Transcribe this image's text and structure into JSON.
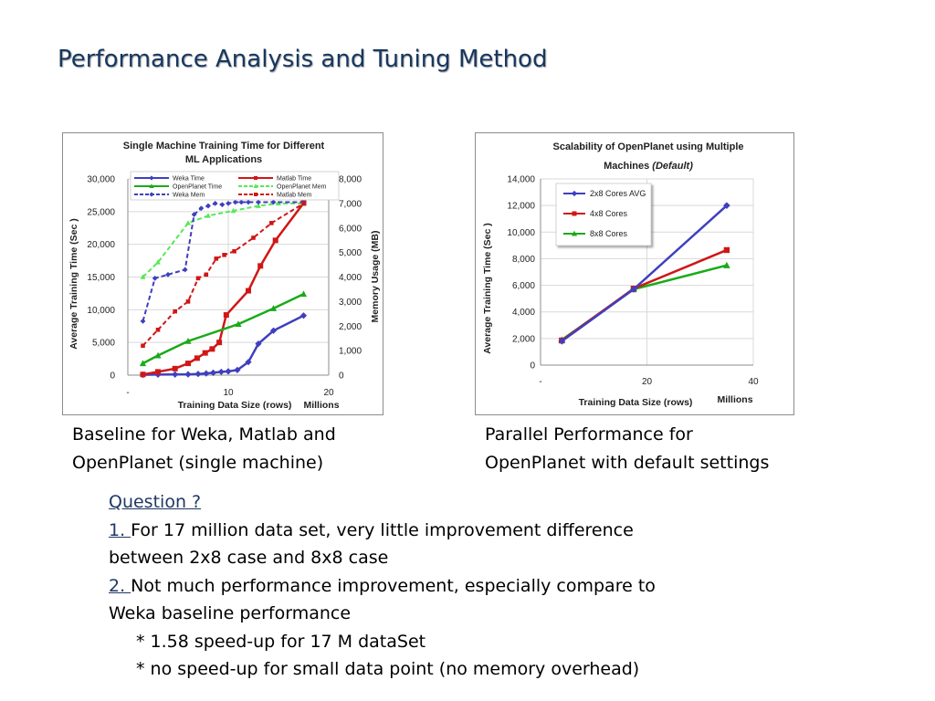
{
  "slide": {
    "title": "Performance Analysis and Tuning Method",
    "caption_left_line1": "Baseline for Weka, Matlab and",
    "caption_left_line2": "OpenPlanet (single machine)",
    "caption_right_line1": "Parallel Performance for",
    "caption_right_line2": "OpenPlanet with default settings",
    "question_heading": "Question ?",
    "point1_num": "1. ",
    "point1_line1": "For 17 million data set, very little improvement difference",
    "point1_line2": "between 2x8 case and 8x8 case",
    "point2_num": "2. ",
    "point2_line1": "Not much performance improvement, especially compare to",
    "point2_line2": "Weka baseline performance",
    "bullet1": "* 1.58 speed-up for 17 M dataSet",
    "bullet2": "* no speed-up for small data point (no memory overhead)"
  },
  "chart_data": [
    {
      "type": "line",
      "title_line1": "Single Machine Training Time for Different",
      "title_line2": "ML Applications",
      "xlabel": "Training Data Size (rows)",
      "xunit": "Millions",
      "ylabel": "Average Training Time (Sec )",
      "y2label": "Memory Usage (MB)",
      "xlim": [
        0,
        20
      ],
      "ylim": [
        0,
        30000
      ],
      "y2lim": [
        0,
        8000
      ],
      "xticks": [
        "-",
        "10",
        "20"
      ],
      "yticks": [
        "0",
        "5,000",
        "10,000",
        "15,000",
        "20,000",
        "25,000",
        "30,000"
      ],
      "y2ticks": [
        "0",
        "1,000",
        "2,000",
        "3,000",
        "4,000",
        "5,000",
        "6,000",
        "7,000",
        "8,000"
      ],
      "grid": true,
      "legend_position": "top",
      "series": [
        {
          "name": "Weka Time",
          "axis": "left",
          "color": "#3f3fbf",
          "dash": false,
          "marker": "diamond",
          "x": [
            1.5,
            3,
            4.7,
            6,
            7,
            7.8,
            8.5,
            9.3,
            10,
            10.9,
            12,
            13,
            14.5,
            17.5
          ],
          "y": [
            50,
            80,
            100,
            120,
            180,
            260,
            370,
            500,
            580,
            780,
            2000,
            4800,
            6800,
            9100
          ]
        },
        {
          "name": "Matlab Time",
          "axis": "left",
          "color": "#d01616",
          "dash": false,
          "marker": "square",
          "x": [
            1.5,
            3,
            4.7,
            6,
            6.9,
            7.7,
            8.4,
            9.1,
            9.8,
            12,
            13.2,
            14.7,
            17.5
          ],
          "y": [
            100,
            500,
            1000,
            1800,
            2600,
            3400,
            4000,
            5000,
            9200,
            12900,
            16700,
            20600,
            26300
          ]
        },
        {
          "name": "OpenPlanet Time",
          "axis": "left",
          "color": "#1aaa1a",
          "dash": false,
          "marker": "triangle",
          "x": [
            1.5,
            3,
            6,
            11,
            14.5,
            17.5
          ],
          "y": [
            1800,
            3000,
            5200,
            7800,
            10200,
            12400
          ]
        },
        {
          "name": "OpenPlanet Mem",
          "axis": "right",
          "color": "#55e855",
          "dash": true,
          "marker": "triangle",
          "x": [
            1.5,
            3,
            6,
            8,
            10.5,
            13,
            15,
            17.5
          ],
          "y": [
            4000,
            4600,
            6200,
            6500,
            6700,
            6900,
            7000,
            7000
          ]
        },
        {
          "name": "Weka Mem",
          "axis": "right",
          "color": "#3f3fbf",
          "dash": true,
          "marker": "diamond",
          "x": [
            1.5,
            2.7,
            4,
            5.7,
            6.6,
            7.3,
            8,
            8.7,
            9.4,
            10,
            10.7,
            11.3,
            12,
            13,
            14.5,
            17.5
          ],
          "y": [
            2200,
            3950,
            4100,
            4300,
            6550,
            6800,
            6900,
            7000,
            6950,
            7000,
            7050,
            7050,
            7050,
            7050,
            7050,
            7050
          ]
        },
        {
          "name": "Matlab Mem",
          "axis": "right",
          "color": "#d01616",
          "dash": true,
          "marker": "square",
          "x": [
            1.5,
            3,
            4.7,
            6,
            7,
            7.8,
            8.8,
            9.6,
            10.6,
            12.5,
            14.3,
            17.5
          ],
          "y": [
            1200,
            1850,
            2600,
            3000,
            3950,
            4100,
            4750,
            4900,
            5050,
            5600,
            6200,
            7000
          ]
        }
      ]
    },
    {
      "type": "line",
      "title_line1": "Scalability of OpenPlanet using Multiple",
      "title_line2_plain": "Machines ",
      "title_line2_italic": "(Default)",
      "xlabel": "Training Data Size (rows)",
      "xunit": "Millions",
      "ylabel": "Average Training Time (Sec )",
      "xlim": [
        0,
        40
      ],
      "ylim": [
        0,
        14000
      ],
      "xticks": [
        "-",
        "20",
        "40"
      ],
      "yticks": [
        "0",
        "2,000",
        "4,000",
        "6,000",
        "8,000",
        "10,000",
        "12,000",
        "14,000"
      ],
      "grid": true,
      "legend_position": "top-left",
      "series": [
        {
          "name": "2x8 Cores AVG",
          "color": "#3f3fbf",
          "marker": "diamond",
          "x": [
            4,
            17.5,
            35
          ],
          "y": [
            1800,
            5700,
            12000
          ]
        },
        {
          "name": "4x8 Cores",
          "color": "#d01616",
          "marker": "square",
          "x": [
            4,
            17.5,
            35
          ],
          "y": [
            1850,
            5750,
            8650
          ]
        },
        {
          "name": "8x8 Cores",
          "color": "#1aaa1a",
          "marker": "triangle",
          "x": [
            4,
            17.5,
            35
          ],
          "y": [
            1900,
            5700,
            7500
          ]
        }
      ]
    }
  ]
}
